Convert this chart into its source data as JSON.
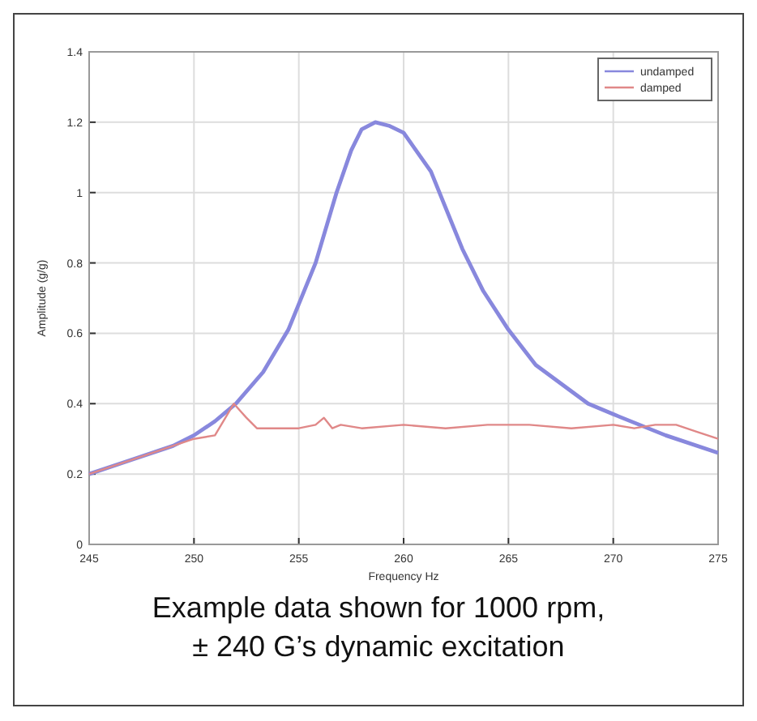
{
  "chart_data": {
    "type": "line",
    "xlabel": "Frequency Hz",
    "ylabel": "Amplitude (g/g)",
    "xlim": [
      245,
      275
    ],
    "xticks": [
      245,
      250,
      255,
      260,
      265,
      270,
      275
    ],
    "ylim": [
      0,
      1.4
    ],
    "yticks": [
      0,
      0.2,
      0.4,
      0.6,
      0.8,
      1,
      1.2,
      1.4
    ],
    "grid": true,
    "legend": "top right",
    "annotations": [
      "Example data shown for 1000 rpm,\n± 240 G’s dynamic excitation"
    ],
    "series": [
      {
        "name": "undamped",
        "color": "#8888dd",
        "x": [
          245,
          247,
          249,
          250,
          251,
          252,
          253.3,
          254.5,
          255.8,
          256.8,
          257.5,
          258,
          258.65,
          259.3,
          260,
          261.3,
          262.8,
          263.8,
          265,
          266.3,
          268.8,
          270,
          272.5,
          275
        ],
        "values": [
          0.2,
          0.24,
          0.28,
          0.31,
          0.35,
          0.4,
          0.49,
          0.61,
          0.8,
          1.0,
          1.12,
          1.18,
          1.2,
          1.19,
          1.17,
          1.06,
          0.84,
          0.72,
          0.61,
          0.51,
          0.4,
          0.37,
          0.31,
          0.26
        ]
      },
      {
        "name": "damped",
        "color": "#e08888",
        "x": [
          245,
          247,
          249,
          250,
          251,
          251.9,
          252.5,
          253,
          254,
          255,
          255.8,
          256.2,
          256.6,
          257,
          258,
          260,
          262,
          264,
          266,
          268,
          270,
          271,
          272,
          273,
          274,
          275
        ],
        "values": [
          0.2,
          0.24,
          0.28,
          0.3,
          0.31,
          0.4,
          0.36,
          0.33,
          0.33,
          0.33,
          0.34,
          0.36,
          0.33,
          0.34,
          0.33,
          0.34,
          0.33,
          0.34,
          0.34,
          0.33,
          0.34,
          0.33,
          0.34,
          0.34,
          0.32,
          0.3
        ]
      }
    ]
  }
}
